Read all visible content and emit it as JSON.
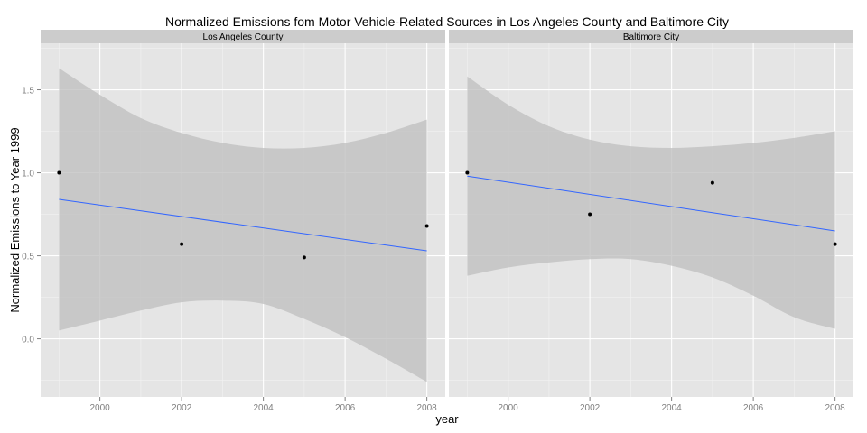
{
  "title": "Normalized Emissions fom Motor Vehicle-Related Sources in Los Angeles County and Baltimore City",
  "xlabel": "year",
  "ylabel": "Normalized Emissions to Year 1999",
  "colors": {
    "panel_bg": "#E5E5E5",
    "strip_bg": "#CCCCCC",
    "grid_major": "#FFFFFF",
    "ribbon": "#BDBDBD",
    "line": "#3366FF",
    "point": "#000000",
    "tick_text": "#7F7F7F",
    "text": "#000000"
  },
  "chart_data": {
    "type": "scatter",
    "title": "Normalized Emissions fom Motor Vehicle-Related Sources in Los Angeles County and Baltimore City",
    "xlabel": "year",
    "ylabel": "Normalized Emissions to Year 1999",
    "xlim": [
      1998.55,
      2008.45
    ],
    "ylim": [
      -0.35,
      1.78
    ],
    "x_ticks": [
      2000,
      2002,
      2004,
      2006,
      2008
    ],
    "y_ticks": [
      0.0,
      0.5,
      1.0,
      1.5
    ],
    "x_tick_labels": [
      "2000",
      "2002",
      "2004",
      "2006",
      "2008"
    ],
    "y_tick_labels": [
      "0.0",
      "0.5",
      "1.0",
      "1.5"
    ],
    "grid": true,
    "legend": "none",
    "smooth": "linear fit with confidence band",
    "panels": [
      {
        "name": "Los Angeles County",
        "points": {
          "x": [
            1999,
            2002,
            2005,
            2008
          ],
          "y": [
            1.0,
            0.57,
            0.49,
            0.68
          ]
        },
        "fit": {
          "x": [
            1999,
            2008
          ],
          "y": [
            0.84,
            0.53
          ]
        },
        "band": {
          "x": [
            1999,
            2000,
            2001,
            2002,
            2003,
            2004,
            2005,
            2006,
            2007,
            2008
          ],
          "upper": [
            1.63,
            1.47,
            1.33,
            1.24,
            1.18,
            1.15,
            1.15,
            1.18,
            1.24,
            1.32
          ],
          "lower": [
            0.05,
            0.11,
            0.17,
            0.22,
            0.23,
            0.21,
            0.12,
            0.01,
            -0.12,
            -0.26
          ]
        }
      },
      {
        "name": "Baltimore City",
        "points": {
          "x": [
            1999,
            2002,
            2005,
            2008
          ],
          "y": [
            1.0,
            0.75,
            0.94,
            0.57
          ]
        },
        "fit": {
          "x": [
            1999,
            2008
          ],
          "y": [
            0.98,
            0.65
          ]
        },
        "band": {
          "x": [
            1999,
            2000,
            2001,
            2002,
            2003,
            2004,
            2005,
            2006,
            2007,
            2008
          ],
          "upper": [
            1.58,
            1.41,
            1.28,
            1.2,
            1.16,
            1.15,
            1.16,
            1.18,
            1.21,
            1.25
          ],
          "lower": [
            0.38,
            0.43,
            0.46,
            0.48,
            0.48,
            0.44,
            0.37,
            0.26,
            0.13,
            0.06
          ]
        }
      }
    ]
  }
}
